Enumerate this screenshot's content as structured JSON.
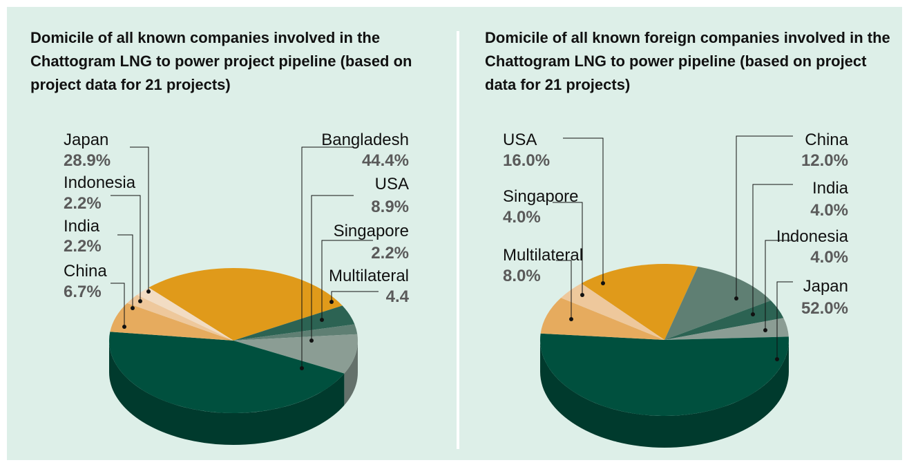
{
  "chart_data": [
    {
      "type": "pie",
      "title": "Domicile of all known companies involved in the Chattogram LNG to power project pipeline (based on project data for 21 projects)",
      "categories": [
        "Japan",
        "Multilateral",
        "Singapore",
        "USA",
        "Bangladesh",
        "China",
        "India",
        "Indonesia"
      ],
      "values": [
        28.9,
        4.4,
        2.2,
        8.9,
        44.4,
        6.7,
        2.2,
        2.2
      ],
      "value_labels": [
        "28.9%",
        "4.4",
        "2.2%",
        "8.9%",
        "44.4%",
        "6.7%",
        "2.2%",
        "2.2%"
      ],
      "colors": [
        "#e09a1a",
        "#2c6353",
        "#5f7f73",
        "#8b9d94",
        "#00503e",
        "#e6ab5e",
        "#eec89c",
        "#f2dcc3"
      ]
    },
    {
      "type": "pie",
      "title": "Domicile of all known foreign companies involved in the Chattogram LNG to power pipeline (based on project data for 21 projects)",
      "categories": [
        "USA",
        "China",
        "India",
        "Indonesia",
        "Japan",
        "Multilateral",
        "Singapore"
      ],
      "values": [
        16.0,
        12.0,
        4.0,
        4.0,
        52.0,
        8.0,
        4.0
      ],
      "value_labels": [
        "16.0%",
        "12.0%",
        "4.0%",
        "4.0%",
        "52.0%",
        "8.0%",
        "4.0%"
      ],
      "colors": [
        "#e09a1a",
        "#5f7f73",
        "#2c6353",
        "#8b9d94",
        "#00503e",
        "#e6ab5e",
        "#eec89c"
      ]
    }
  ]
}
